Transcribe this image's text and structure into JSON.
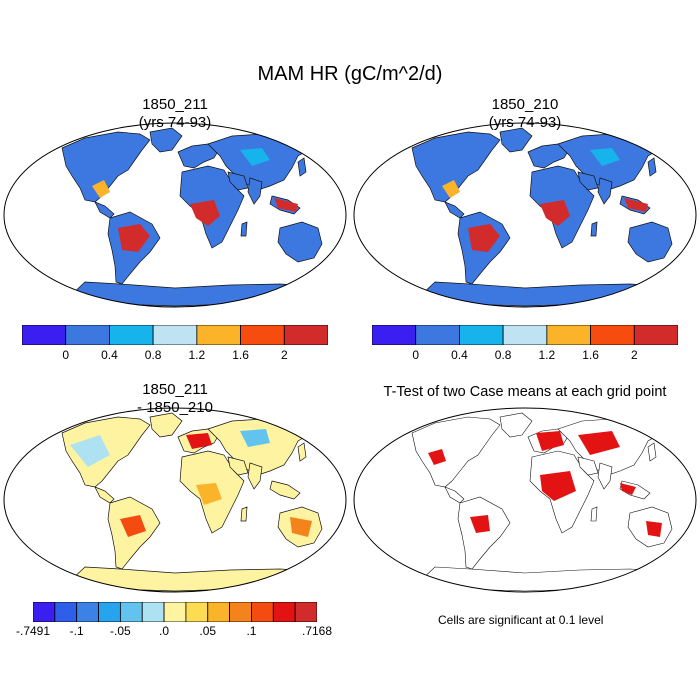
{
  "main_title": "MAM HR (gC/m^2/d)",
  "panels": [
    {
      "id": "p1",
      "title_line1": "1850_211",
      "title_line2": "(yrs 74-93)"
    },
    {
      "id": "p2",
      "title_line1": "1850_210",
      "title_line2": "(yrs 74-93)"
    },
    {
      "id": "p3",
      "title_line1": "1850_211",
      "title_line2": "- 1850_210"
    },
    {
      "id": "p4",
      "title_line1": "T-Test of two Case means at each grid point",
      "title_line2": ""
    }
  ],
  "colorbar_abs": {
    "colors": [
      "#3a1ff0",
      "#3c78e0",
      "#17b3ec",
      "#bfe3f2",
      "#fbb429",
      "#f74c0f",
      "#d22b2b"
    ],
    "labels": [
      "0",
      "0.4",
      "0.8",
      "1.2",
      "1.6",
      "2"
    ]
  },
  "colorbar_diff": {
    "colors": [
      "#3a1ff0",
      "#2e5fe8",
      "#3c82e6",
      "#26a4ee",
      "#62c4ee",
      "#aee2f2",
      "#fef3a0",
      "#fbdc52",
      "#fbb429",
      "#f5831b",
      "#f44b10",
      "#e41313",
      "#d22b2b"
    ],
    "labels": [
      "-.7491",
      "-.1",
      "-.05",
      ".0",
      ".05",
      ".1",
      ".7168"
    ]
  },
  "significance_note": "Cells are significant at 0.1 level"
}
